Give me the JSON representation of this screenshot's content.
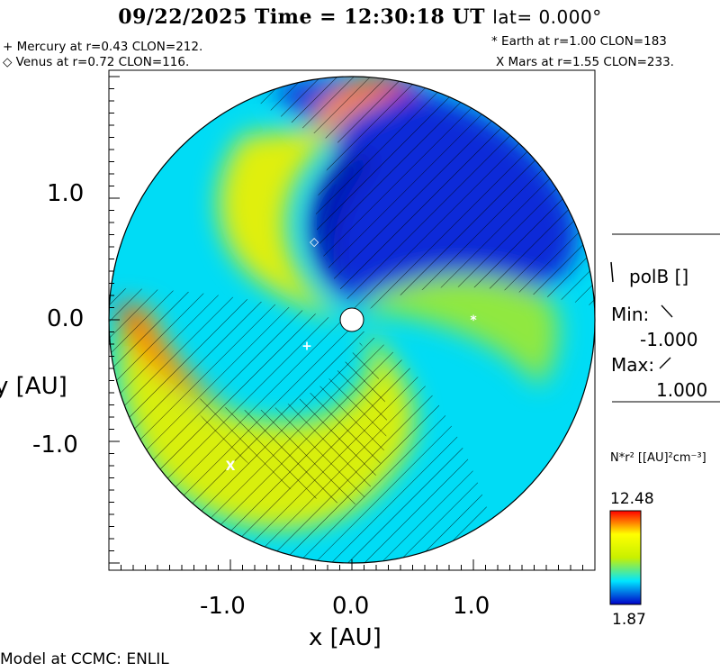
{
  "header": {
    "title_main": "09/22/2025 Time = 12:30:18 UT",
    "title_lat": "lat= 0.000°"
  },
  "planets": {
    "mercury": "+ Mercury at r=0.43 CLON=212.",
    "venus": "◇ Venus at r=0.72 CLON=116.",
    "earth": "* Earth at  r=1.00 CLON=183",
    "mars": "X Mars at r=1.55 CLON=233."
  },
  "legend_field": {
    "label": "polB []",
    "min_label": "Min:",
    "min_value": "-1.000",
    "max_label": "Max:",
    "max_value": "1.000"
  },
  "colorbar": {
    "label": "N*r² [[AU]²cm⁻³]",
    "max": "12.48",
    "min": "1.87"
  },
  "footer": "Model at CCMC: ENLIL",
  "chart_data": {
    "type": "heatmap",
    "title": "09/22/2025 Time = 12:30:18 UT lat= 0.000°",
    "xlabel": "x [AU]",
    "ylabel": "y [AU]",
    "xlim": [
      -2.0,
      2.0
    ],
    "ylim": [
      -2.0,
      2.0
    ],
    "x_ticks": [
      "-1.0",
      "0.0",
      "1.0"
    ],
    "y_ticks": [
      "1.0",
      "0.0",
      "-1.0"
    ],
    "colorscale": {
      "min": 1.87,
      "max": 12.48,
      "colors": [
        "#0000c8",
        "#00e6ff",
        "#c8f000",
        "#ffff00",
        "#ff0000"
      ]
    },
    "quantity": "N*r²",
    "overlay": "polB polarity hatching (Min -1.000, Max 1.000)",
    "bodies": [
      {
        "name": "Mercury",
        "marker": "+",
        "x": -0.37,
        "y": -0.21
      },
      {
        "name": "Venus",
        "marker": "◇",
        "x": -0.31,
        "y": 0.65
      },
      {
        "name": "Earth",
        "marker": "*",
        "x": 1.0,
        "y": 0.0
      },
      {
        "name": "Mars",
        "marker": "X",
        "x": -1.0,
        "y": -1.2
      }
    ]
  }
}
